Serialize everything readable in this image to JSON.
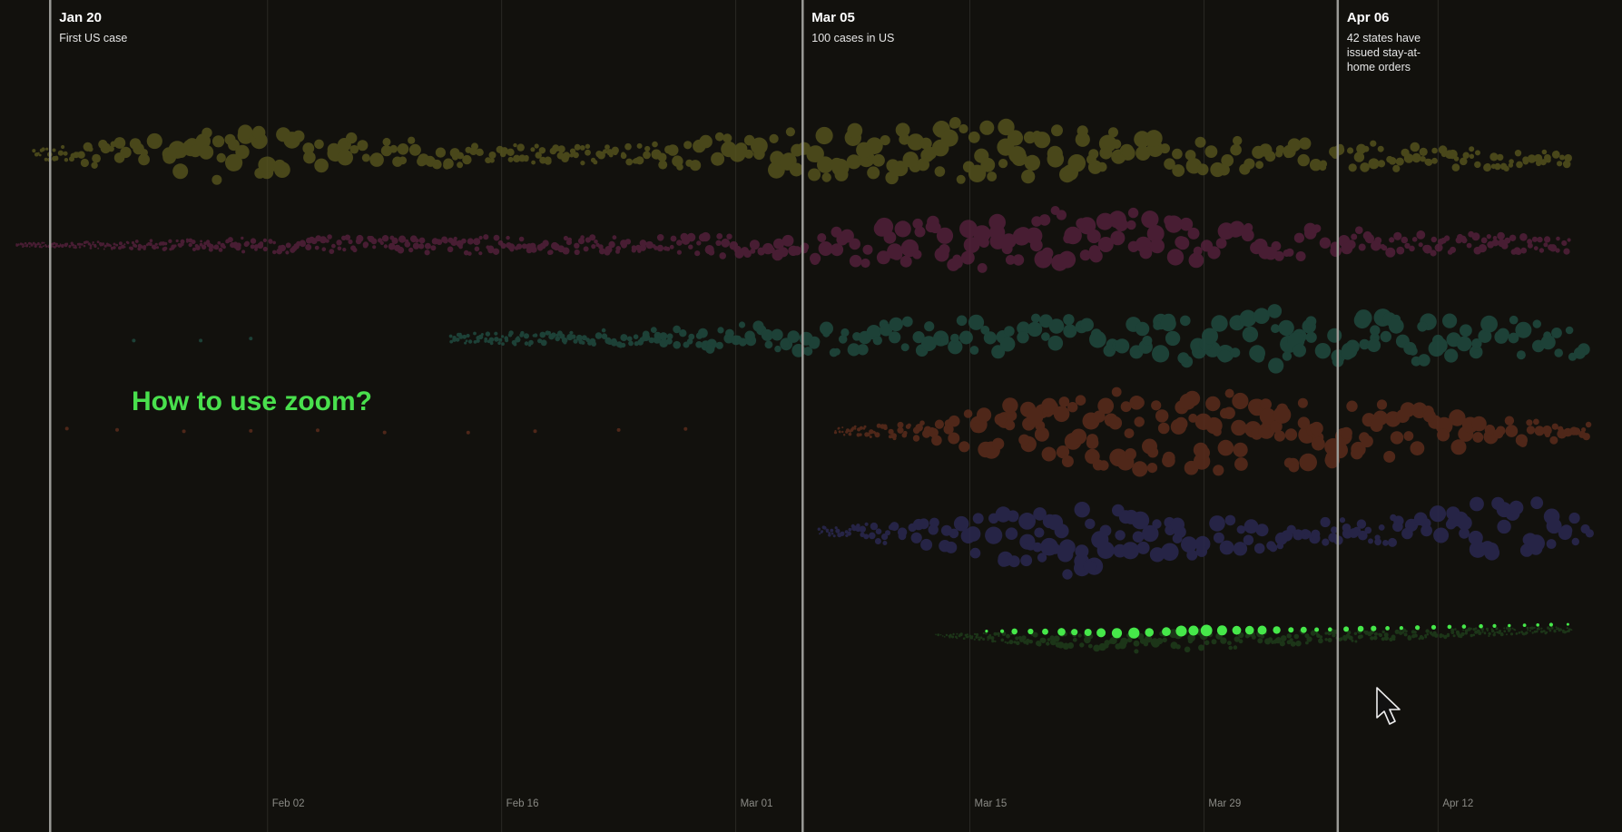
{
  "chart_data": {
    "type": "scatter",
    "title": "",
    "xlabel": "",
    "ylabel": "",
    "x_range": [
      "2020-01-17",
      "2020-04-23"
    ],
    "x_ticks": [
      {
        "date": "2020-02-02",
        "label": "Feb 02"
      },
      {
        "date": "2020-02-16",
        "label": "Feb 16"
      },
      {
        "date": "2020-03-01",
        "label": "Mar 01"
      },
      {
        "date": "2020-03-15",
        "label": "Mar 15"
      },
      {
        "date": "2020-03-29",
        "label": "Mar 29"
      },
      {
        "date": "2020-04-12",
        "label": "Apr 12"
      }
    ],
    "events": [
      {
        "date": "2020-01-20",
        "title": "Jan 20",
        "text": [
          "First US case"
        ]
      },
      {
        "date": "2020-03-05",
        "title": "Mar 05",
        "text": [
          "100 cases in US"
        ]
      },
      {
        "date": "2020-04-06",
        "title": "Apr 06",
        "text": [
          "42 states have",
          "issued stay-at-",
          "home orders"
        ]
      }
    ],
    "series": [
      {
        "color": "#5c5a1f",
        "opacity": 0.75,
        "start": "2020-01-19",
        "end": "2020-04-20",
        "profile": [
          [
            0,
            2
          ],
          [
            0.12,
            11
          ],
          [
            0.2,
            8
          ],
          [
            0.3,
            4
          ],
          [
            0.38,
            4
          ],
          [
            0.45,
            8
          ],
          [
            0.58,
            13
          ],
          [
            0.64,
            12
          ],
          [
            0.72,
            9
          ],
          [
            0.85,
            6
          ],
          [
            1,
            4
          ]
        ],
        "center_drift": [
          [
            0,
            0
          ],
          [
            0.4,
            0
          ],
          [
            0.6,
            -4
          ],
          [
            1,
            6
          ]
        ]
      },
      {
        "color": "#5a2240",
        "opacity": 0.75,
        "start": "2020-01-18",
        "end": "2020-04-20",
        "profile": [
          [
            0,
            1
          ],
          [
            0.2,
            4
          ],
          [
            0.4,
            4
          ],
          [
            0.48,
            6
          ],
          [
            0.56,
            10
          ],
          [
            0.68,
            13
          ],
          [
            0.72,
            12
          ],
          [
            0.8,
            8
          ],
          [
            0.9,
            5
          ],
          [
            1,
            4
          ]
        ],
        "center_drift": [
          [
            0,
            0
          ],
          [
            0.5,
            0
          ],
          [
            0.7,
            -6
          ],
          [
            1,
            0
          ]
        ]
      },
      {
        "color": "#1f4a3f",
        "opacity": 0.85,
        "start": "2020-02-13",
        "end": "2020-04-21",
        "profile": [
          [
            0,
            3
          ],
          [
            0.15,
            5
          ],
          [
            0.3,
            9
          ],
          [
            0.45,
            11
          ],
          [
            0.6,
            12
          ],
          [
            0.75,
            17
          ],
          [
            0.85,
            13
          ],
          [
            1,
            10
          ]
        ],
        "center_drift": [
          [
            0,
            0
          ],
          [
            1,
            0
          ]
        ],
        "outliers": [
          {
            "date": "2020-01-25"
          },
          {
            "date": "2020-01-29"
          },
          {
            "date": "2020-02-01"
          }
        ]
      },
      {
        "color": "#5a2c1c",
        "opacity": 0.85,
        "start": "2020-03-07",
        "end": "2020-04-21",
        "profile": [
          [
            0,
            2
          ],
          [
            0.12,
            6
          ],
          [
            0.25,
            18
          ],
          [
            0.4,
            22
          ],
          [
            0.55,
            22
          ],
          [
            0.75,
            15
          ],
          [
            0.9,
            9
          ],
          [
            1,
            6
          ]
        ],
        "center_drift": [
          [
            0,
            0
          ],
          [
            1,
            0
          ]
        ],
        "outliers": [
          {
            "date": "2020-01-21"
          },
          {
            "date": "2020-01-24"
          },
          {
            "date": "2020-01-28"
          },
          {
            "date": "2020-02-01"
          },
          {
            "date": "2020-02-05"
          },
          {
            "date": "2020-02-09"
          },
          {
            "date": "2020-02-14"
          },
          {
            "date": "2020-02-18"
          },
          {
            "date": "2020-02-23"
          },
          {
            "date": "2020-02-27"
          }
        ]
      },
      {
        "color": "#2a2850",
        "opacity": 0.85,
        "start": "2020-03-06",
        "end": "2020-04-21",
        "profile": [
          [
            0,
            2
          ],
          [
            0.15,
            8
          ],
          [
            0.3,
            18
          ],
          [
            0.45,
            12
          ],
          [
            0.6,
            8
          ],
          [
            0.72,
            6
          ],
          [
            0.8,
            10
          ],
          [
            0.9,
            16
          ],
          [
            1,
            8
          ]
        ],
        "center_drift": [
          [
            0,
            0
          ],
          [
            0.3,
            10
          ],
          [
            0.6,
            4
          ],
          [
            1,
            -8
          ]
        ]
      },
      {
        "color": "#1e3a1a",
        "opacity": 0.9,
        "start": "2020-03-13",
        "end": "2020-04-20",
        "profile": [
          [
            0,
            1
          ],
          [
            0.2,
            5
          ],
          [
            0.4,
            7
          ],
          [
            0.6,
            4
          ],
          [
            0.8,
            3
          ],
          [
            1,
            2
          ]
        ],
        "center_drift": [
          [
            0,
            0
          ],
          [
            0.3,
            8
          ],
          [
            0.5,
            4
          ],
          [
            1,
            -6
          ]
        ],
        "highlight_color": "#46e84a"
      }
    ]
  },
  "zoom_prompt": "How to use zoom?"
}
